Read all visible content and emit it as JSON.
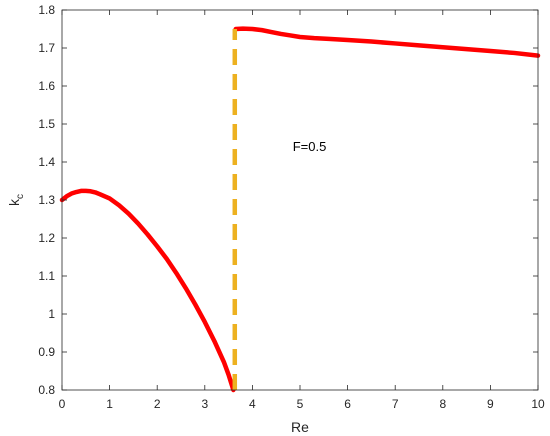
{
  "chart_data": {
    "type": "line",
    "xlabel": "Re",
    "ylabel": {
      "base": "k",
      "subscript": "c"
    },
    "xlim": [
      0,
      10
    ],
    "ylim": [
      0.8,
      1.8
    ],
    "xticks": [
      0,
      1,
      2,
      3,
      4,
      5,
      6,
      7,
      8,
      9,
      10
    ],
    "yticks": [
      0.8,
      0.9,
      1,
      1.1,
      1.2,
      1.3,
      1.4,
      1.5,
      1.6,
      1.7,
      1.8
    ],
    "xtick_labels": [
      "0",
      "1",
      "2",
      "3",
      "4",
      "5",
      "6",
      "7",
      "8",
      "9",
      "10"
    ],
    "ytick_labels": [
      "0.8",
      "0.9",
      "1",
      "1.1",
      "1.2",
      "1.3",
      "1.4",
      "1.5",
      "1.6",
      "1.7",
      "1.8"
    ],
    "grid": false,
    "box": true,
    "colors": {
      "curve": "#ff0000",
      "dashed": "#edb120",
      "axis": "#262626"
    },
    "annotation": {
      "text": "F=0.5",
      "x": 5.2,
      "y": 1.44
    },
    "series": [
      {
        "style": "solid",
        "x": [
          0,
          0.1,
          0.2,
          0.3,
          0.4,
          0.5,
          0.6,
          0.7,
          0.8,
          1.0,
          1.2,
          1.4,
          1.6,
          1.8,
          2.0,
          2.2,
          2.4,
          2.6,
          2.8,
          3.0,
          3.2,
          3.4,
          3.5,
          3.6
        ],
        "y": [
          1.3,
          1.31,
          1.317,
          1.321,
          1.324,
          1.324,
          1.323,
          1.32,
          1.315,
          1.304,
          1.286,
          1.264,
          1.238,
          1.209,
          1.178,
          1.145,
          1.108,
          1.068,
          1.025,
          0.979,
          0.929,
          0.874,
          0.84,
          0.8
        ]
      },
      {
        "style": "solid",
        "x": [
          3.65,
          3.8,
          4.0,
          4.2,
          4.4,
          4.6,
          4.8,
          5.0,
          5.3,
          5.6,
          6.0,
          6.5,
          7.0,
          7.5,
          8.0,
          8.5,
          9.0,
          9.5,
          10.0
        ],
        "y": [
          1.75,
          1.751,
          1.75,
          1.747,
          1.742,
          1.737,
          1.733,
          1.729,
          1.726,
          1.724,
          1.721,
          1.717,
          1.712,
          1.707,
          1.702,
          1.697,
          1.692,
          1.687,
          1.68
        ]
      },
      {
        "style": "dashed",
        "x": [
          3.63,
          3.63
        ],
        "y": [
          0.8,
          1.75
        ]
      }
    ]
  }
}
